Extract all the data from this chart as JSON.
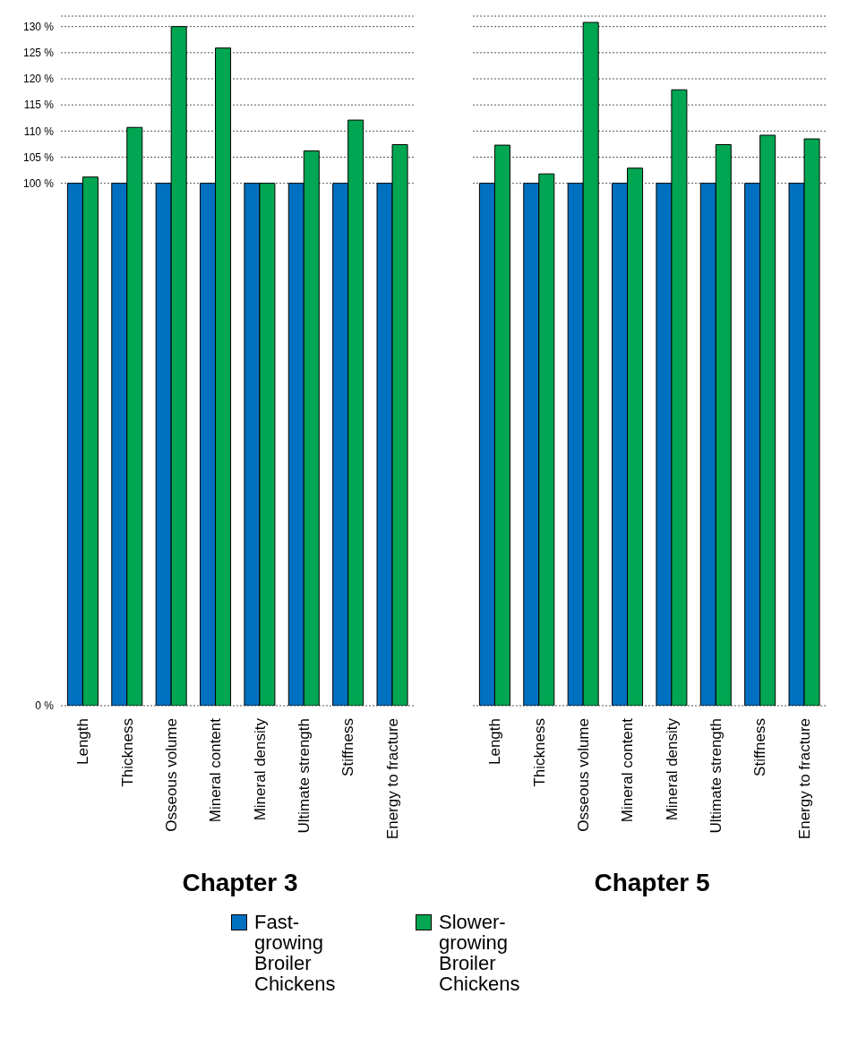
{
  "chart_data": [
    {
      "type": "bar",
      "title": "Chapter 3",
      "categories": [
        "Length",
        "Thickness",
        "Osseous volume",
        "Mineral content",
        "Mineral density",
        "Ultimate strength",
        "Stiffness",
        "Energy to fracture"
      ],
      "series": [
        {
          "name": "Fast-growing Broiler Chickens",
          "color": "#0070c0",
          "values": [
            100,
            100,
            100,
            100,
            100,
            100,
            100,
            100
          ]
        },
        {
          "name": "Slower-growing Broiler Chickens",
          "color": "#00a651",
          "values": [
            101.2,
            110.7,
            130,
            125.9,
            100,
            106.2,
            112.1,
            107.4
          ]
        }
      ],
      "ylim": [
        0,
        132
      ],
      "yticks": [
        {
          "value": 0,
          "label": "0 %"
        },
        {
          "value": 100,
          "label": "100 %"
        },
        {
          "value": 105,
          "label": "105 %"
        },
        {
          "value": 110,
          "label": "110 %"
        },
        {
          "value": 115,
          "label": "115 %"
        },
        {
          "value": 120,
          "label": "120 %"
        },
        {
          "value": 125,
          "label": "125 %"
        },
        {
          "value": 130,
          "label": "130 %"
        }
      ],
      "grid": "y",
      "legend": "bottom"
    },
    {
      "type": "bar",
      "title": "Chapter 5",
      "categories": [
        "Length",
        "Thickness",
        "Osseous volume",
        "Mineral content",
        "Mineral density",
        "Ultimate strength",
        "Stiffness",
        "Energy to fracture"
      ],
      "series": [
        {
          "color": "#0070c0",
          "values": [
            100,
            100,
            100,
            100,
            100,
            100,
            100,
            100
          ]
        },
        {
          "color": "#00a651",
          "values": [
            107.3,
            101.8,
            130.8,
            102.9,
            117.9,
            107.4,
            109.2,
            108.5
          ]
        }
      ],
      "ylim": [
        0,
        132
      ],
      "yticks": [
        0,
        100,
        105,
        110,
        115,
        120,
        125,
        130
      ],
      "grid": "y",
      "tick_labels": "x"
    }
  ]
}
